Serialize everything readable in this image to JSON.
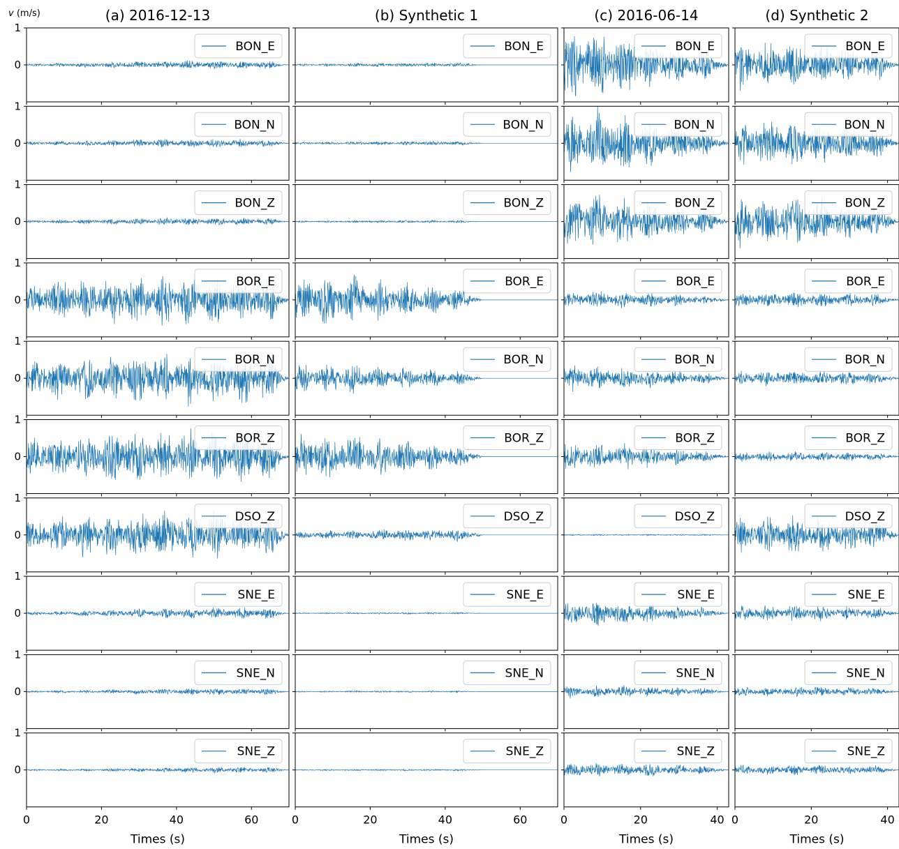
{
  "figure": {
    "y_unit_label_symbol": "v",
    "y_unit_label_unit": " (m/s)"
  },
  "colors": {
    "trace": "#1f77b4",
    "axes": "#000000",
    "background": "#ffffff"
  },
  "chart_data": {
    "type": "line",
    "description_type": "seismogram grid",
    "y_ticks": [
      0,
      1
    ],
    "y_range": [
      -1,
      1
    ],
    "columns": [
      {
        "title": "(a) 2016-12-13",
        "xlabel": "Times (s)",
        "xlim": [
          0,
          70
        ],
        "x_ticks": [
          0,
          20,
          40,
          60
        ],
        "signal_end": 70,
        "scales": [
          0.1,
          0.1,
          0.09,
          0.55,
          0.58,
          0.62,
          0.55,
          0.13,
          0.08,
          0.07
        ],
        "peak_time": [
          45,
          42,
          44,
          35,
          36,
          38,
          40,
          50,
          52,
          55
        ],
        "decay": [
          0.7,
          0.7,
          0.7,
          0.4,
          0.4,
          0.4,
          0.4,
          0.7,
          0.7,
          0.7
        ]
      },
      {
        "title": "(b) Synthetic 1",
        "xlabel": "Times (s)",
        "xlim": [
          0,
          70
        ],
        "x_ticks": [
          0,
          20,
          40,
          60
        ],
        "signal_end": 50,
        "scales": [
          0.05,
          0.05,
          0.03,
          0.65,
          0.35,
          0.52,
          0.15,
          0.02,
          0.02,
          0.02
        ],
        "peak_time": [
          35,
          35,
          30,
          2,
          3,
          3,
          42,
          30,
          30,
          30
        ],
        "decay": [
          0.7,
          0.7,
          0.7,
          1.3,
          1.0,
          1.0,
          0.5,
          0.7,
          0.7,
          0.7
        ]
      },
      {
        "title": "(c) 2016-06-14",
        "xlabel": "Times (s)",
        "xlim": [
          0,
          43
        ],
        "x_ticks": [
          0,
          20,
          40
        ],
        "signal_end": 43,
        "scales": [
          0.85,
          0.75,
          0.65,
          0.2,
          0.3,
          0.32,
          0.015,
          0.28,
          0.15,
          0.18
        ],
        "peak_time": [
          2,
          3,
          2,
          2,
          3,
          3,
          20,
          3,
          2,
          2
        ],
        "decay": [
          1.8,
          1.6,
          1.5,
          1.0,
          1.4,
          1.3,
          0.3,
          1.3,
          1.0,
          1.0
        ]
      },
      {
        "title": "(d) Synthetic 2",
        "xlabel": "Times (s)",
        "xlim": [
          0,
          43
        ],
        "x_ticks": [
          0,
          20,
          40
        ],
        "signal_end": 43,
        "scales": [
          0.55,
          0.55,
          0.6,
          0.18,
          0.18,
          0.12,
          0.42,
          0.18,
          0.12,
          0.12
        ],
        "peak_time": [
          5,
          6,
          5,
          12,
          12,
          12,
          15,
          12,
          12,
          12
        ],
        "decay": [
          0.9,
          0.9,
          1.0,
          0.8,
          0.8,
          0.8,
          0.8,
          0.8,
          0.8,
          0.8
        ]
      }
    ],
    "stations": [
      "BON_E",
      "BON_N",
      "BON_Z",
      "BOR_E",
      "BOR_N",
      "BOR_Z",
      "DSO_Z",
      "SNE_E",
      "SNE_N",
      "SNE_Z"
    ]
  }
}
